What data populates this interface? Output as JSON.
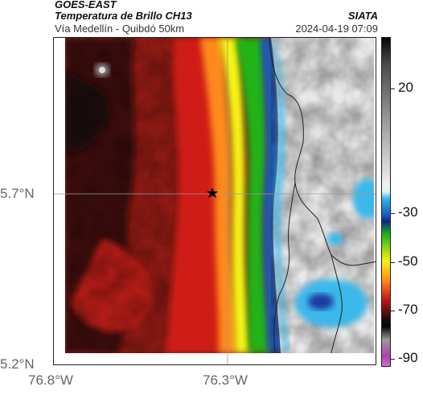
{
  "header": {
    "satellite": "GOES-EAST",
    "title": "Temperatura de Brillo CH13",
    "subtitle": "Vía Medellín - Quibdó 50km",
    "organization": "SIATA",
    "datetime": "2024-04-19 07:09"
  },
  "map": {
    "lat_labels": [
      "5.7°N",
      "5.2°N"
    ],
    "lon_labels": [
      "76.8°W",
      "76.3°W"
    ],
    "gridlines": [
      "5.7°N",
      "76.3°W"
    ],
    "marker": "star"
  },
  "colorbar": {
    "labels": [
      "20",
      "-30",
      "-50",
      "-70",
      "-90"
    ],
    "colors": {
      "warm_dark": "#1a0a08",
      "red": "#c01515",
      "orange": "#ff8a1a",
      "yellow": "#f6f312",
      "green": "#22b418",
      "blue": "#1a5ab8",
      "cyan": "#35b6e8",
      "white": "#f0f0f0",
      "gray": "#9a9a9a",
      "black": "#050505",
      "magenta": "#b040b0"
    }
  }
}
